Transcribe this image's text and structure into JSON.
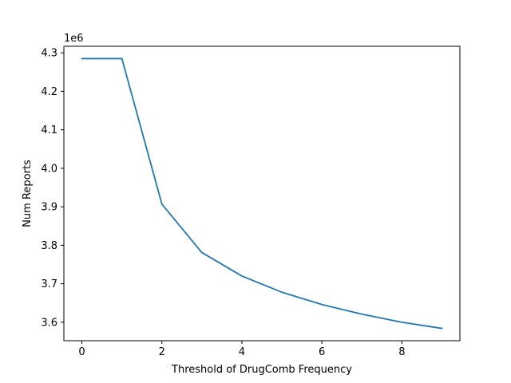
{
  "chart_data": {
    "type": "line",
    "title": "",
    "xlabel": "Threshold of DrugComb Frequency",
    "ylabel": "Num Reports",
    "y_offset_label": "1e6",
    "xlim": [
      -0.45,
      9.45
    ],
    "ylim": [
      3.552,
      4.317
    ],
    "x_ticks": [
      0,
      2,
      4,
      6,
      8
    ],
    "x_tick_labels": [
      "0",
      "2",
      "4",
      "6",
      "8"
    ],
    "y_ticks": [
      3.6,
      3.7,
      3.8,
      3.9,
      4.0,
      4.1,
      4.2,
      4.3
    ],
    "y_tick_labels": [
      "3.6",
      "3.7",
      "3.8",
      "3.9",
      "4.0",
      "4.1",
      "4.2",
      "4.3"
    ],
    "grid": false,
    "series": [
      {
        "color": "#1f77b4",
        "x": [
          0,
          1,
          2,
          3,
          4,
          5,
          6,
          7,
          8,
          9
        ],
        "y": [
          4.285,
          4.285,
          3.907,
          3.781,
          3.72,
          3.678,
          3.646,
          3.621,
          3.6,
          3.584
        ]
      }
    ]
  }
}
